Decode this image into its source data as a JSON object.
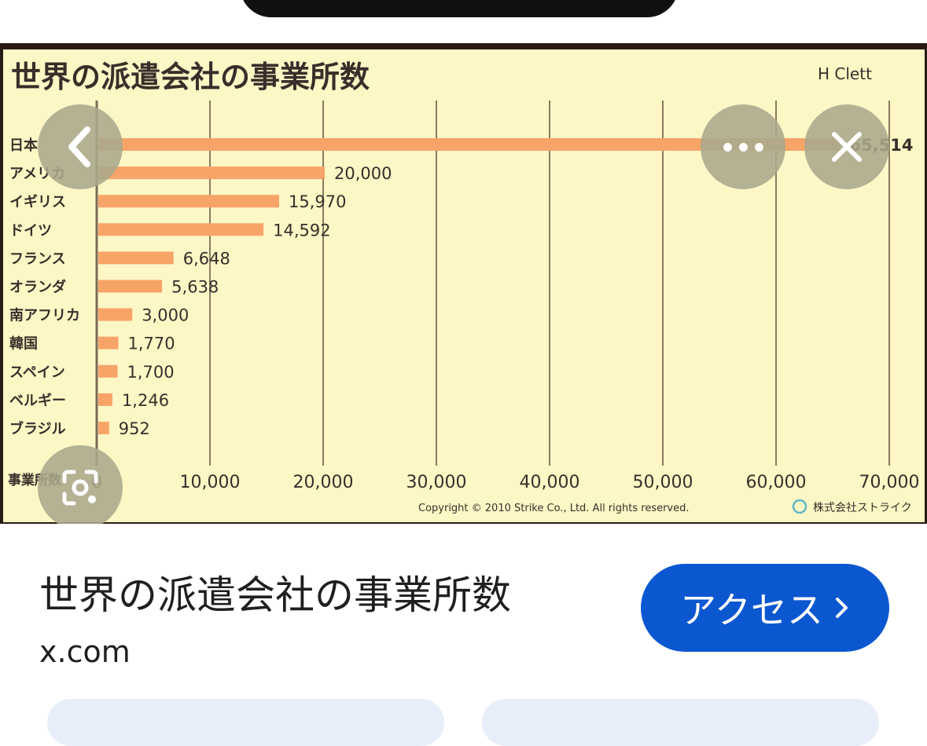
{
  "viewer": {
    "chart_image": {
      "header_partial": "H    Clett",
      "copyright": "Copyright © 2010 Strike Co., Ltd. All rights reserved.",
      "company": "株式会社ストライク",
      "chart_data": {
        "type": "bar",
        "orientation": "horizontal",
        "title": "世界の派遣会社の事業所数",
        "xlabel": "事業所数",
        "xlim": [
          0,
          70000
        ],
        "x_ticks": [
          "0",
          "10,000",
          "20,000",
          "30,000",
          "40,000",
          "50,000",
          "60,000",
          "70,000"
        ],
        "categories": [
          "日本",
          "アメリカ",
          "イギリス",
          "ドイツ",
          "フランス",
          "オランダ",
          "南アフリカ",
          "韓国",
          "スペイン",
          "ベルギー",
          "ブラジル"
        ],
        "values": [
          65514,
          20000,
          15970,
          14592,
          6648,
          5638,
          3000,
          1770,
          1700,
          1246,
          952
        ],
        "value_labels": [
          "65,514",
          "20,000",
          "15,970",
          "14,592",
          "6,648",
          "5,638",
          "3,000",
          "1,770",
          "1,700",
          "1,246",
          "952"
        ],
        "grid": true,
        "bar_color": "#f7a468",
        "background_color": "#fdf7c6"
      }
    },
    "overlay_icons": {
      "back": "chevron-left-icon",
      "more": "more-horizontal-icon",
      "close": "close-icon",
      "lens": "lens-search-icon"
    }
  },
  "result": {
    "title": "世界の派遣会社の事業所数",
    "source": "x.com",
    "access_button": "アクセス",
    "accent_color": "#0b57d0"
  }
}
